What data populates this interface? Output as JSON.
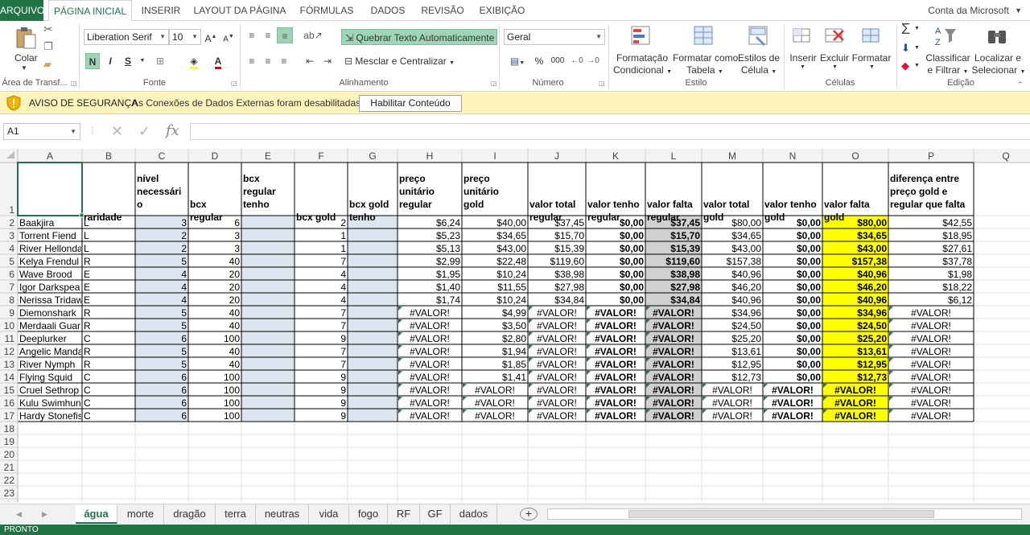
{
  "ribbon_tabs": [
    "ARQUIVO",
    "PÁGINA INICIAL",
    "INSERIR",
    "LAYOUT DA PÁGINA",
    "FÓRMULAS",
    "DADOS",
    "REVISÃO",
    "EXIBIÇÃO"
  ],
  "account": "Conta da Microsoft",
  "ribbon": {
    "clipboard": {
      "paste": "Colar",
      "label": "Área de Transf..."
    },
    "font": {
      "name": "Liberation Serif",
      "size": "10",
      "bold": "N",
      "italic": "I",
      "underline": "S",
      "label": "Fonte"
    },
    "alignment": {
      "wrap": "Quebrar Texto Automaticamente",
      "merge": "Mesclar e Centralizar",
      "label": "Alinhamento"
    },
    "number": {
      "format": "Geral",
      "percent": "%",
      "thousands": "000",
      "label": "Número"
    },
    "styles": {
      "cond1": "Formatação",
      "cond2": "Condicional",
      "table1": "Formatar como",
      "table2": "Tabela",
      "cell1": "Estilos de",
      "cell2": "Célula",
      "label": "Estilo"
    },
    "cells": {
      "insert": "Inserir",
      "delete": "Excluir",
      "format": "Formatar",
      "label": "Células"
    },
    "editing": {
      "sort1": "Classificar",
      "sort2": "e Filtrar",
      "find1": "Localizar e",
      "find2": "Selecionar",
      "label": "Edição"
    }
  },
  "security": {
    "title": "AVISO DE SEGURANÇA",
    "message": "As Conexões de Dados Externas foram desabilitadas",
    "button": "Habilitar Conteúdo"
  },
  "formula_bar": {
    "cell_ref": "A1",
    "cancel": "✕",
    "enter": "✓",
    "fx": "fx",
    "content": ""
  },
  "columns": [
    "A",
    "B",
    "C",
    "D",
    "E",
    "F",
    "G",
    "H",
    "I",
    "J",
    "K",
    "L",
    "M",
    "N",
    "O",
    "P",
    "Q"
  ],
  "header_row": [
    [
      "",
      "",
      "",
      ""
    ],
    [
      "",
      "",
      "",
      "raridade"
    ],
    [
      "nível",
      "necessári",
      "o",
      ""
    ],
    [
      "",
      "",
      "bcx",
      "regular"
    ],
    [
      "bcx",
      "regular",
      "tenho",
      ""
    ],
    [
      "",
      "",
      "",
      "bcx gold"
    ],
    [
      "",
      "",
      "bcx gold",
      "tenho"
    ],
    [
      "preço",
      "unitário",
      "regular",
      ""
    ],
    [
      "preço",
      "unitário",
      "gold",
      ""
    ],
    [
      "",
      "",
      "valor total",
      "regular"
    ],
    [
      "",
      "",
      "valor tenho",
      "regular"
    ],
    [
      "",
      "",
      "valor falta",
      "regular"
    ],
    [
      "",
      "",
      "valor total",
      "gold"
    ],
    [
      "",
      "",
      "valor tenho",
      "gold"
    ],
    [
      "",
      "",
      "valor falta",
      "gold"
    ],
    [
      "diferença entre",
      "preço gold e",
      "regular que falta",
      ""
    ]
  ],
  "rows": [
    [
      "Baakjira",
      "L",
      "3",
      "6",
      "",
      "2",
      "",
      "$6,24",
      "$40,00",
      "$37,45",
      "$0,00",
      "$37,45",
      "$80,00",
      "$0,00",
      "$80,00",
      "$42,55"
    ],
    [
      "Torrent Fiend",
      "L",
      "2",
      "3",
      "",
      "1",
      "",
      "$5,23",
      "$34,65",
      "$15,70",
      "$0,00",
      "$15,70",
      "$34,65",
      "$0,00",
      "$34,65",
      "$18,95"
    ],
    [
      "River Hellonda",
      "L",
      "2",
      "3",
      "",
      "1",
      "",
      "$5,13",
      "$43,00",
      "$15,39",
      "$0,00",
      "$15,39",
      "$43,00",
      "$0,00",
      "$43,00",
      "$27,61"
    ],
    [
      "Kelya Frendul",
      "R",
      "5",
      "40",
      "",
      "7",
      "",
      "$2,99",
      "$22,48",
      "$119,60",
      "$0,00",
      "$119,60",
      "$157,38",
      "$0,00",
      "$157,38",
      "$37,78"
    ],
    [
      "Wave Brood",
      "E",
      "4",
      "20",
      "",
      "4",
      "",
      "$1,95",
      "$10,24",
      "$38,98",
      "$0,00",
      "$38,98",
      "$40,96",
      "$0,00",
      "$40,96",
      "$1,98"
    ],
    [
      "Igor Darkspea",
      "E",
      "4",
      "20",
      "",
      "4",
      "",
      "$1,40",
      "$11,55",
      "$27,98",
      "$0,00",
      "$27,98",
      "$46,20",
      "$0,00",
      "$46,20",
      "$18,22"
    ],
    [
      "Nerissa Tridaw",
      "E",
      "4",
      "20",
      "",
      "4",
      "",
      "$1,74",
      "$10,24",
      "$34,84",
      "$0,00",
      "$34,84",
      "$40,96",
      "$0,00",
      "$40,96",
      "$6,12"
    ],
    [
      "Diemonshark",
      "R",
      "5",
      "40",
      "",
      "7",
      "",
      "#VALOR!",
      "$4,99",
      "#VALOR!",
      "#VALOR!",
      "#VALOR!",
      "$34,96",
      "$0,00",
      "$34,96",
      "#VALOR!"
    ],
    [
      "Merdaali Guar",
      "R",
      "5",
      "40",
      "",
      "7",
      "",
      "#VALOR!",
      "$3,50",
      "#VALOR!",
      "#VALOR!",
      "#VALOR!",
      "$24,50",
      "$0,00",
      "$24,50",
      "#VALOR!"
    ],
    [
      "Deeplurker",
      "C",
      "6",
      "100",
      "",
      "9",
      "",
      "#VALOR!",
      "$2,80",
      "#VALOR!",
      "#VALOR!",
      "#VALOR!",
      "$25,20",
      "$0,00",
      "$25,20",
      "#VALOR!"
    ],
    [
      "Angelic Manda",
      "R",
      "5",
      "40",
      "",
      "7",
      "",
      "#VALOR!",
      "$1,94",
      "#VALOR!",
      "#VALOR!",
      "#VALOR!",
      "$13,61",
      "$0,00",
      "$13,61",
      "#VALOR!"
    ],
    [
      "River Nymph",
      "R",
      "5",
      "40",
      "",
      "7",
      "",
      "#VALOR!",
      "$1,85",
      "#VALOR!",
      "#VALOR!",
      "#VALOR!",
      "$12,95",
      "$0,00",
      "$12,95",
      "#VALOR!"
    ],
    [
      "Flying Squid",
      "C",
      "6",
      "100",
      "",
      "9",
      "",
      "#VALOR!",
      "$1,41",
      "#VALOR!",
      "#VALOR!",
      "#VALOR!",
      "$12,73",
      "$0,00",
      "$12,73",
      "#VALOR!"
    ],
    [
      "Cruel Sethrop",
      "C",
      "6",
      "100",
      "",
      "9",
      "",
      "#VALOR!",
      "#VALOR!",
      "#VALOR!",
      "#VALOR!",
      "#VALOR!",
      "#VALOR!",
      "#VALOR!",
      "#VALOR!",
      "#VALOR!"
    ],
    [
      "Kulu Swimhun",
      "C",
      "6",
      "100",
      "",
      "9",
      "",
      "#VALOR!",
      "#VALOR!",
      "#VALOR!",
      "#VALOR!",
      "#VALOR!",
      "#VALOR!",
      "#VALOR!",
      "#VALOR!",
      "#VALOR!"
    ],
    [
      "Hardy Stonefis",
      "C",
      "6",
      "100",
      "",
      "9",
      "",
      "#VALOR!",
      "#VALOR!",
      "#VALOR!",
      "#VALOR!",
      "#VALOR!",
      "#VALOR!",
      "#VALOR!",
      "#VALOR!",
      "#VALOR!"
    ]
  ],
  "empty_rows": [
    "18",
    "19",
    "20",
    "21",
    "22",
    "23"
  ],
  "sheet_tabs": [
    "água",
    "morte",
    "dragão",
    "terra",
    "neutras",
    "vida",
    "fogo",
    "RF",
    "GF",
    "dados"
  ],
  "add_sheet": "+",
  "status": "PRONTO",
  "colors": {
    "excel_green": "#217346",
    "input_fill": "#dce6f1",
    "gray_fill": "#d0d0d0",
    "yellow_fill": "#ffff00",
    "security_bar": "#fdf4bd"
  }
}
